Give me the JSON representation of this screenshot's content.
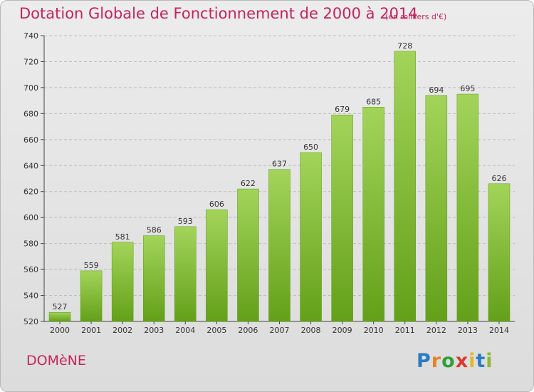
{
  "header": {
    "title": "Dotation Globale de Fonctionnement de 2000 à 2014",
    "subtitle": "(en milliers d'€)"
  },
  "footer": {
    "commune": "DOMèNE",
    "logo_text": "Proxiti",
    "logo_letters": [
      "P",
      "r",
      "o",
      "x",
      "i",
      "t",
      "i"
    ]
  },
  "colors": {
    "title": "#c4245a",
    "bar_light": "#a3d45a",
    "bar_dark": "#63a019",
    "grid": "#bdbdbd"
  },
  "chart_data": {
    "type": "bar",
    "title": "Dotation Globale de Fonctionnement de 2000 à 2014",
    "subtitle": "(en milliers d'€)",
    "categories": [
      "2000",
      "2001",
      "2002",
      "2003",
      "2004",
      "2005",
      "2006",
      "2007",
      "2008",
      "2009",
      "2010",
      "2011",
      "2012",
      "2013",
      "2014"
    ],
    "values": [
      527,
      559,
      581,
      586,
      593,
      606,
      622,
      637,
      650,
      679,
      685,
      728,
      694,
      695,
      626
    ],
    "ylim": [
      520,
      740
    ],
    "yticks": [
      520,
      540,
      560,
      580,
      600,
      620,
      640,
      660,
      680,
      700,
      720,
      740
    ],
    "grid": true,
    "data_labels": true
  }
}
